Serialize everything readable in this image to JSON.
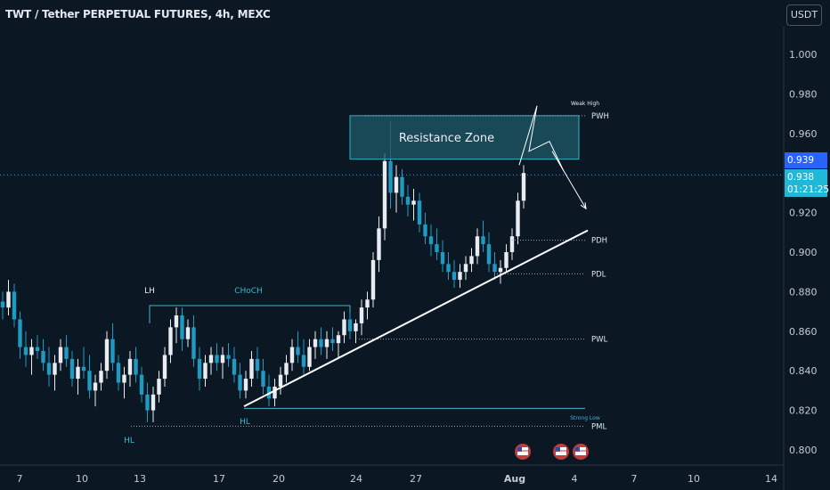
{
  "header": {
    "title": "TWT / Tether PERPETUAL FUTURES, 4h, MEXC",
    "currency_button": "USDT"
  },
  "price_tags": {
    "last": "0.939",
    "current": "0.938",
    "countdown": "01:21:25"
  },
  "colors": {
    "background": "#0c1724",
    "up": "#e9edf2",
    "down": "#1d9bc3",
    "level_line": "#9aa3ad",
    "trend": "#ffffff",
    "zone_fill": "#1e5a68",
    "projection": "#ffffff"
  },
  "chart_data": {
    "type": "candlestick",
    "ylim": [
      0.79,
      1.01
    ],
    "y_ticks": [
      "1.000",
      "0.980",
      "0.960",
      "0.940",
      "0.920",
      "0.900",
      "0.880",
      "0.860",
      "0.840",
      "0.820",
      "0.800"
    ],
    "x_ticks": [
      "7",
      "10",
      "13",
      "17",
      "20",
      "24",
      "27",
      "Aug",
      "4",
      "7",
      "10",
      "14"
    ],
    "annotations": {
      "zone": "Resistance Zone",
      "weak_high": "Weak High",
      "strong_low": "Strong Low",
      "lh": "LH",
      "choch": "CHoCH",
      "hl1": "HL",
      "hl2": "HL"
    },
    "levels": [
      {
        "label": "PWH",
        "value": 0.969
      },
      {
        "label": "PDH",
        "value": 0.906
      },
      {
        "label": "PDL",
        "value": 0.889
      },
      {
        "label": "PWL",
        "value": 0.856
      },
      {
        "label": "PML",
        "value": 0.812
      }
    ],
    "structure_lines": {
      "lh_level": 0.873,
      "hl_level": 0.821
    },
    "resistance_zone": {
      "low": 0.947,
      "high": 0.969
    },
    "trendline": [
      {
        "x": "Jul 18",
        "y": 0.822
      },
      {
        "x": "Aug 5",
        "y": 0.911
      }
    ],
    "projection_path": [
      0.944,
      0.974,
      0.951,
      0.956,
      0.941,
      0.951,
      0.922
    ],
    "candles": [
      [
        0.875,
        0.88,
        0.866,
        0.872
      ],
      [
        0.872,
        0.886,
        0.868,
        0.88
      ],
      [
        0.88,
        0.884,
        0.862,
        0.866
      ],
      [
        0.866,
        0.87,
        0.846,
        0.852
      ],
      [
        0.852,
        0.86,
        0.842,
        0.848
      ],
      [
        0.848,
        0.856,
        0.838,
        0.852
      ],
      [
        0.852,
        0.858,
        0.846,
        0.85
      ],
      [
        0.85,
        0.856,
        0.84,
        0.844
      ],
      [
        0.844,
        0.852,
        0.832,
        0.838
      ],
      [
        0.838,
        0.848,
        0.83,
        0.844
      ],
      [
        0.844,
        0.856,
        0.84,
        0.852
      ],
      [
        0.852,
        0.858,
        0.842,
        0.846
      ],
      [
        0.846,
        0.85,
        0.832,
        0.836
      ],
      [
        0.836,
        0.846,
        0.828,
        0.842
      ],
      [
        0.842,
        0.852,
        0.836,
        0.84
      ],
      [
        0.84,
        0.848,
        0.826,
        0.83
      ],
      [
        0.83,
        0.838,
        0.822,
        0.834
      ],
      [
        0.834,
        0.844,
        0.83,
        0.84
      ],
      [
        0.84,
        0.86,
        0.836,
        0.856
      ],
      [
        0.856,
        0.864,
        0.84,
        0.844
      ],
      [
        0.844,
        0.848,
        0.83,
        0.834
      ],
      [
        0.834,
        0.842,
        0.826,
        0.838
      ],
      [
        0.838,
        0.85,
        0.832,
        0.846
      ],
      [
        0.846,
        0.852,
        0.834,
        0.838
      ],
      [
        0.838,
        0.842,
        0.824,
        0.828
      ],
      [
        0.828,
        0.834,
        0.814,
        0.82
      ],
      [
        0.82,
        0.832,
        0.814,
        0.828
      ],
      [
        0.828,
        0.84,
        0.824,
        0.836
      ],
      [
        0.836,
        0.852,
        0.832,
        0.848
      ],
      [
        0.848,
        0.866,
        0.844,
        0.862
      ],
      [
        0.862,
        0.872,
        0.854,
        0.868
      ],
      [
        0.868,
        0.872,
        0.85,
        0.856
      ],
      [
        0.856,
        0.866,
        0.852,
        0.862
      ],
      [
        0.862,
        0.868,
        0.842,
        0.846
      ],
      [
        0.846,
        0.852,
        0.83,
        0.836
      ],
      [
        0.836,
        0.848,
        0.832,
        0.844
      ],
      [
        0.844,
        0.852,
        0.838,
        0.848
      ],
      [
        0.848,
        0.854,
        0.84,
        0.844
      ],
      [
        0.844,
        0.852,
        0.836,
        0.848
      ],
      [
        0.848,
        0.854,
        0.842,
        0.846
      ],
      [
        0.846,
        0.852,
        0.834,
        0.838
      ],
      [
        0.838,
        0.844,
        0.826,
        0.83
      ],
      [
        0.83,
        0.84,
        0.826,
        0.836
      ],
      [
        0.836,
        0.85,
        0.832,
        0.846
      ],
      [
        0.846,
        0.852,
        0.836,
        0.84
      ],
      [
        0.84,
        0.846,
        0.828,
        0.832
      ],
      [
        0.832,
        0.838,
        0.822,
        0.826
      ],
      [
        0.826,
        0.836,
        0.822,
        0.832
      ],
      [
        0.832,
        0.842,
        0.828,
        0.838
      ],
      [
        0.838,
        0.848,
        0.834,
        0.844
      ],
      [
        0.844,
        0.856,
        0.84,
        0.852
      ],
      [
        0.852,
        0.86,
        0.844,
        0.848
      ],
      [
        0.848,
        0.856,
        0.838,
        0.842
      ],
      [
        0.842,
        0.856,
        0.84,
        0.852
      ],
      [
        0.852,
        0.86,
        0.846,
        0.856
      ],
      [
        0.856,
        0.862,
        0.848,
        0.852
      ],
      [
        0.852,
        0.86,
        0.846,
        0.856
      ],
      [
        0.856,
        0.862,
        0.85,
        0.854
      ],
      [
        0.854,
        0.86,
        0.846,
        0.858
      ],
      [
        0.858,
        0.87,
        0.854,
        0.866
      ],
      [
        0.866,
        0.872,
        0.856,
        0.86
      ],
      [
        0.86,
        0.866,
        0.854,
        0.864
      ],
      [
        0.864,
        0.876,
        0.858,
        0.872
      ],
      [
        0.872,
        0.88,
        0.866,
        0.876
      ],
      [
        0.876,
        0.9,
        0.872,
        0.896
      ],
      [
        0.896,
        0.918,
        0.89,
        0.912
      ],
      [
        0.912,
        0.95,
        0.906,
        0.946
      ],
      [
        0.946,
        0.966,
        0.922,
        0.93
      ],
      [
        0.93,
        0.944,
        0.92,
        0.938
      ],
      [
        0.938,
        0.942,
        0.924,
        0.928
      ],
      [
        0.928,
        0.934,
        0.918,
        0.924
      ],
      [
        0.924,
        0.932,
        0.916,
        0.926
      ],
      [
        0.926,
        0.93,
        0.91,
        0.914
      ],
      [
        0.914,
        0.92,
        0.904,
        0.908
      ],
      [
        0.908,
        0.914,
        0.898,
        0.904
      ],
      [
        0.904,
        0.912,
        0.896,
        0.9
      ],
      [
        0.9,
        0.906,
        0.89,
        0.894
      ],
      [
        0.894,
        0.9,
        0.886,
        0.89
      ],
      [
        0.89,
        0.896,
        0.882,
        0.886
      ],
      [
        0.886,
        0.894,
        0.882,
        0.89
      ],
      [
        0.89,
        0.898,
        0.886,
        0.894
      ],
      [
        0.894,
        0.902,
        0.89,
        0.898
      ],
      [
        0.898,
        0.912,
        0.894,
        0.908
      ],
      [
        0.908,
        0.916,
        0.9,
        0.904
      ],
      [
        0.904,
        0.91,
        0.89,
        0.894
      ],
      [
        0.894,
        0.9,
        0.886,
        0.89
      ],
      [
        0.89,
        0.896,
        0.884,
        0.892
      ],
      [
        0.892,
        0.904,
        0.89,
        0.9
      ],
      [
        0.9,
        0.912,
        0.896,
        0.908
      ],
      [
        0.908,
        0.93,
        0.904,
        0.926
      ],
      [
        0.926,
        0.944,
        0.922,
        0.94
      ]
    ]
  }
}
